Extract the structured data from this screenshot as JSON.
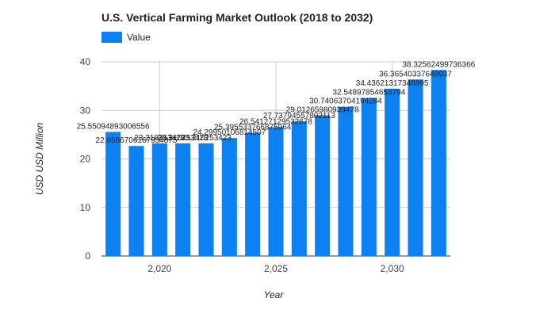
{
  "chart_data": {
    "type": "bar",
    "title": "U.S. Vertical Farming Market Outlook (2018 to 2032)",
    "xlabel": "Year",
    "ylabel": "USD USD Million",
    "legend": {
      "placement": "top-left",
      "entries": [
        "Value"
      ]
    },
    "grid": true,
    "ylim": [
      0,
      40
    ],
    "yticks": [
      "0",
      "10",
      "20",
      "30",
      "40"
    ],
    "xlim": [
      2017.5,
      2032.5
    ],
    "xticks": [
      {
        "value": 2020,
        "label": "2,020"
      },
      {
        "value": 2025,
        "label": "2,025"
      },
      {
        "value": 2030,
        "label": "2,030"
      }
    ],
    "series": [
      {
        "name": "Value",
        "color": "#0d80f2",
        "x": [
          2018,
          2019,
          2020,
          2021,
          2022,
          2023,
          2024,
          2025,
          2026,
          2027,
          2028,
          2029,
          2030,
          2031,
          2032
        ],
        "values": [
          25.55094893006556,
          22.658670616795487,
          23.210253,
          23.210253,
          23.210253,
          24.29950106814507,
          25.395533766875964,
          26.54127129532678,
          27.73794557802113,
          29.01265980939478,
          30.74063704194284,
          32.54897854653794,
          34.43621317348895,
          36.36540337648937,
          38.32562499736366
        ],
        "labels": [
          "25.55094893006556",
          "22.6586706167954875",
          "23.210253423",
          "23.210253423",
          "23.210253423",
          "24.29950106814507",
          "25.395533766875964",
          "26.54127129532678",
          "27.73794557802113",
          "29.01265980939478",
          "30.74063704194284",
          "32.54897854653794",
          "34.43621317348895",
          "36.36540337648937",
          "38.32562499736366"
        ]
      }
    ]
  }
}
